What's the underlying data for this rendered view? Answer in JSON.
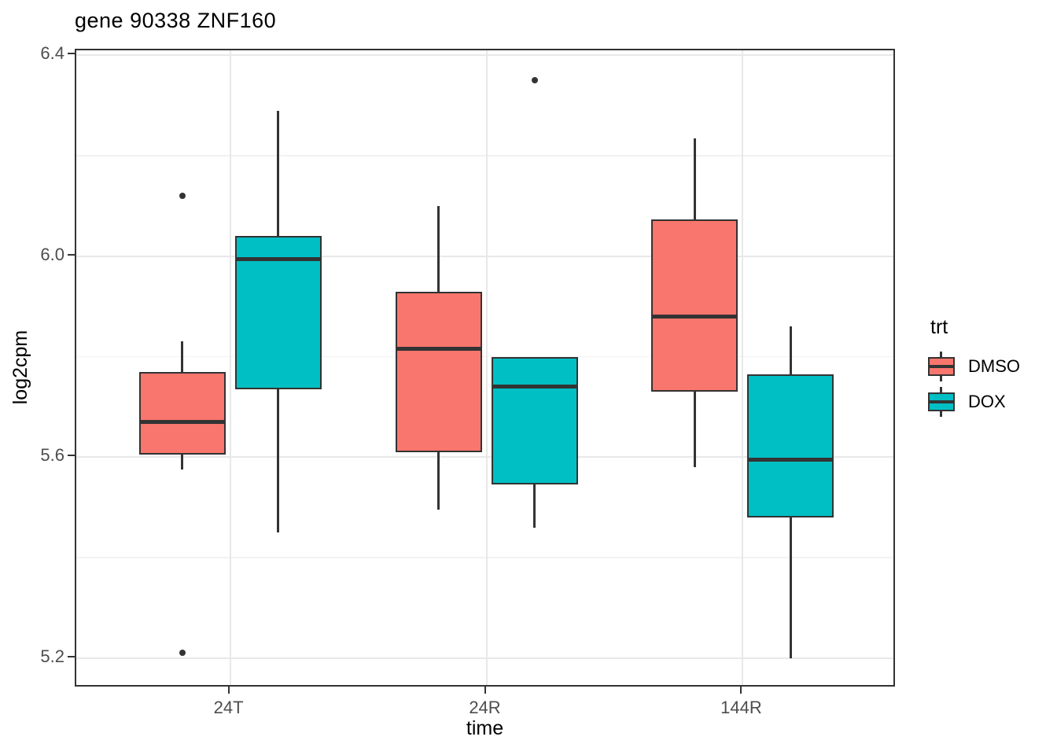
{
  "chart_data": {
    "type": "boxplot",
    "title": "gene 90338 ZNF160",
    "xlabel": "time",
    "ylabel": "log2cpm",
    "categories": [
      "24T",
      "24R",
      "144R"
    ],
    "y_ticks": [
      5.2,
      5.6,
      6.0,
      6.4
    ],
    "y_tick_labels": [
      "5.2",
      "5.6",
      "6.0",
      "6.4"
    ],
    "y_minor_gridlines": [
      5.4,
      5.8,
      6.2
    ],
    "ylim": [
      5.14,
      6.41
    ],
    "grid": "on",
    "legend_position": "right",
    "legend": {
      "title": "trt",
      "entries": [
        {
          "label": "DMSO",
          "color": "#F8766D"
        },
        {
          "label": "DOX",
          "color": "#00BFC4"
        }
      ]
    },
    "style": {
      "stroke_color": "#333333",
      "major_grid_color": "#E8E8E8",
      "minor_grid_color": "#F2F2F2",
      "tick_label_color": "#4D4D4D",
      "dmso_fill": "#F8766D",
      "dox_fill": "#00BFC4"
    },
    "series": [
      {
        "name": "DMSO",
        "color": "#F8766D",
        "boxes": [
          {
            "category": "24T",
            "whisker_low": 5.575,
            "q1": 5.605,
            "median": 5.67,
            "q3": 5.77,
            "whisker_high": 5.83,
            "outliers": [
              6.12,
              5.21
            ]
          },
          {
            "category": "24R",
            "whisker_low": 5.495,
            "q1": 5.61,
            "median": 5.815,
            "q3": 5.93,
            "whisker_high": 6.1,
            "outliers": []
          },
          {
            "category": "144R",
            "whisker_low": 5.58,
            "q1": 5.73,
            "median": 5.88,
            "q3": 6.073,
            "whisker_high": 6.235,
            "outliers": []
          }
        ]
      },
      {
        "name": "DOX",
        "color": "#00BFC4",
        "boxes": [
          {
            "category": "24T",
            "whisker_low": 5.45,
            "q1": 5.735,
            "median": 5.995,
            "q3": 6.04,
            "whisker_high": 6.29,
            "outliers": []
          },
          {
            "category": "24R",
            "whisker_low": 5.46,
            "q1": 5.545,
            "median": 5.74,
            "q3": 5.8,
            "whisker_high": 5.8,
            "outliers": [
              6.35
            ]
          },
          {
            "category": "144R",
            "whisker_low": 5.2,
            "q1": 5.48,
            "median": 5.595,
            "q3": 5.765,
            "whisker_high": 5.86,
            "outliers": []
          }
        ]
      }
    ]
  }
}
